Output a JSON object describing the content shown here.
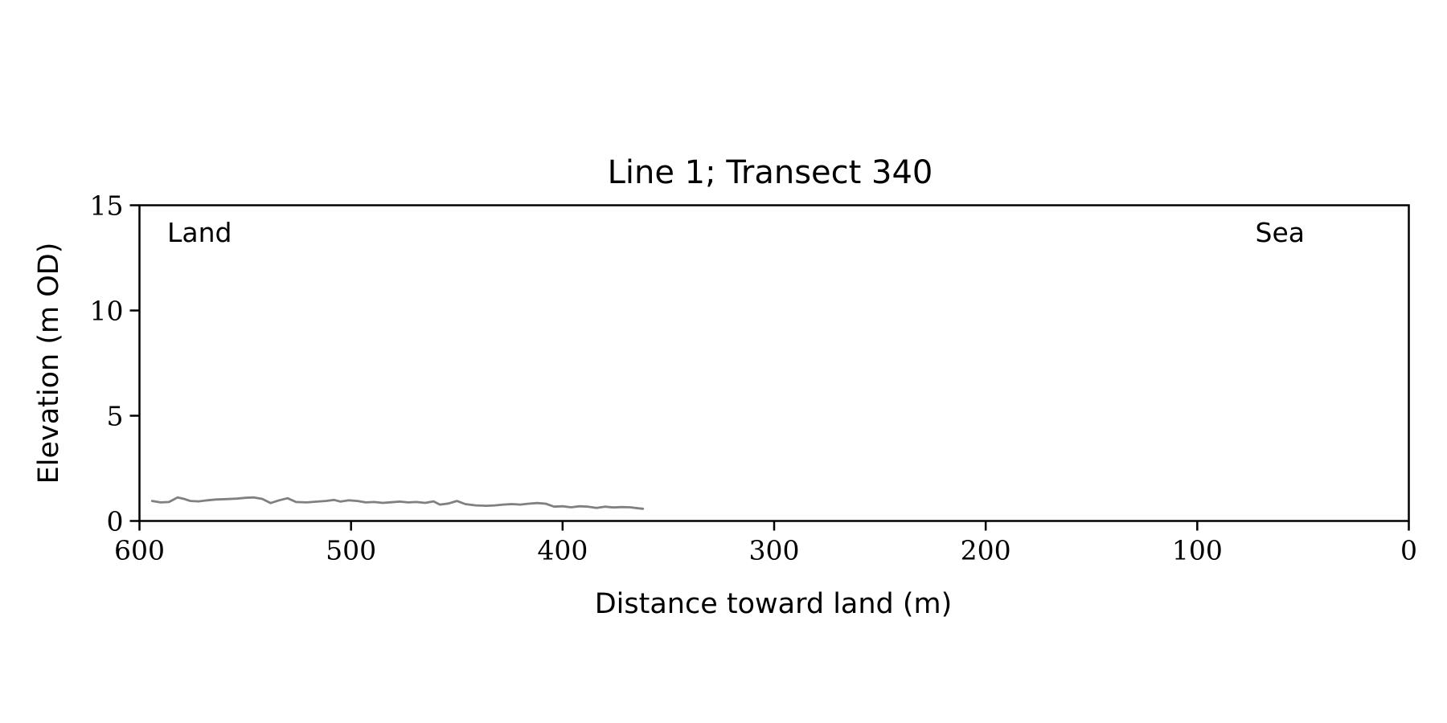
{
  "chart_data": {
    "type": "line",
    "title": "Line 1; Transect 340",
    "xlabel": "Distance toward land (m)",
    "ylabel": "Elevation (m OD)",
    "xlim": [
      600,
      0
    ],
    "ylim": [
      0,
      15
    ],
    "x_reversed": true,
    "xticks": [
      600,
      500,
      400,
      300,
      200,
      100,
      0
    ],
    "yticks": [
      0,
      5,
      10,
      15
    ],
    "grid": false,
    "annotations": [
      {
        "text": "Land",
        "corner": "top-left"
      },
      {
        "text": "Sea",
        "corner": "top-right"
      }
    ],
    "series": [
      {
        "color": "#808080",
        "x": [
          594,
          590,
          586,
          582,
          579,
          576,
          572,
          568,
          564,
          559,
          554,
          550,
          546,
          542,
          538,
          534,
          530,
          526,
          521,
          516,
          512,
          508,
          505,
          501,
          497,
          493,
          489,
          485,
          481,
          477,
          473,
          469,
          465,
          461,
          458,
          454,
          450,
          446,
          441,
          436,
          432,
          428,
          424,
          420,
          416,
          412,
          408,
          404,
          400,
          396,
          392,
          388,
          384,
          380,
          376,
          372,
          368,
          364,
          362
        ],
        "y": [
          0.95,
          0.88,
          0.9,
          1.12,
          1.05,
          0.95,
          0.93,
          0.98,
          1.02,
          1.04,
          1.06,
          1.1,
          1.12,
          1.05,
          0.85,
          0.98,
          1.08,
          0.9,
          0.88,
          0.92,
          0.95,
          1.0,
          0.92,
          0.98,
          0.95,
          0.88,
          0.9,
          0.86,
          0.89,
          0.92,
          0.88,
          0.9,
          0.86,
          0.93,
          0.78,
          0.83,
          0.95,
          0.8,
          0.74,
          0.72,
          0.74,
          0.78,
          0.8,
          0.78,
          0.82,
          0.85,
          0.82,
          0.68,
          0.7,
          0.65,
          0.7,
          0.68,
          0.62,
          0.68,
          0.64,
          0.66,
          0.65,
          0.6,
          0.58
        ]
      }
    ]
  }
}
